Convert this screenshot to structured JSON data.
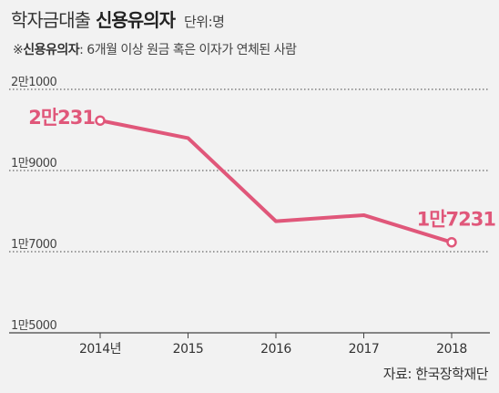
{
  "header": {
    "title_light": "학자금대출",
    "title_bold": "신용유의자",
    "unit": "단위:명"
  },
  "note": {
    "marker": "※",
    "term": "신용유의자",
    "text": ": 6개월 이상 원금 혹은 이자가 연체된 사람"
  },
  "source": "자료: 한국장학재단",
  "colors": {
    "line": "#e0577a",
    "label": "#e0577a",
    "grid": "#444444",
    "background": "#f2f2f2"
  },
  "chart_data": {
    "type": "line",
    "categories": [
      "2014년",
      "2015",
      "2016",
      "2017",
      "2018"
    ],
    "values": [
      20231,
      19800,
      17750,
      17900,
      17231
    ],
    "ylim": [
      15000,
      21000
    ],
    "ytick_values": [
      21000,
      19000,
      17000,
      15000
    ],
    "ytick_labels": [
      "2만1000",
      "1만9000",
      "1만7000",
      "1만5000"
    ],
    "data_labels": [
      {
        "index": 0,
        "text": "2만231"
      },
      {
        "index": 4,
        "text": "1만7231"
      }
    ],
    "title": "",
    "xlabel": "",
    "ylabel": "",
    "grid": true
  }
}
